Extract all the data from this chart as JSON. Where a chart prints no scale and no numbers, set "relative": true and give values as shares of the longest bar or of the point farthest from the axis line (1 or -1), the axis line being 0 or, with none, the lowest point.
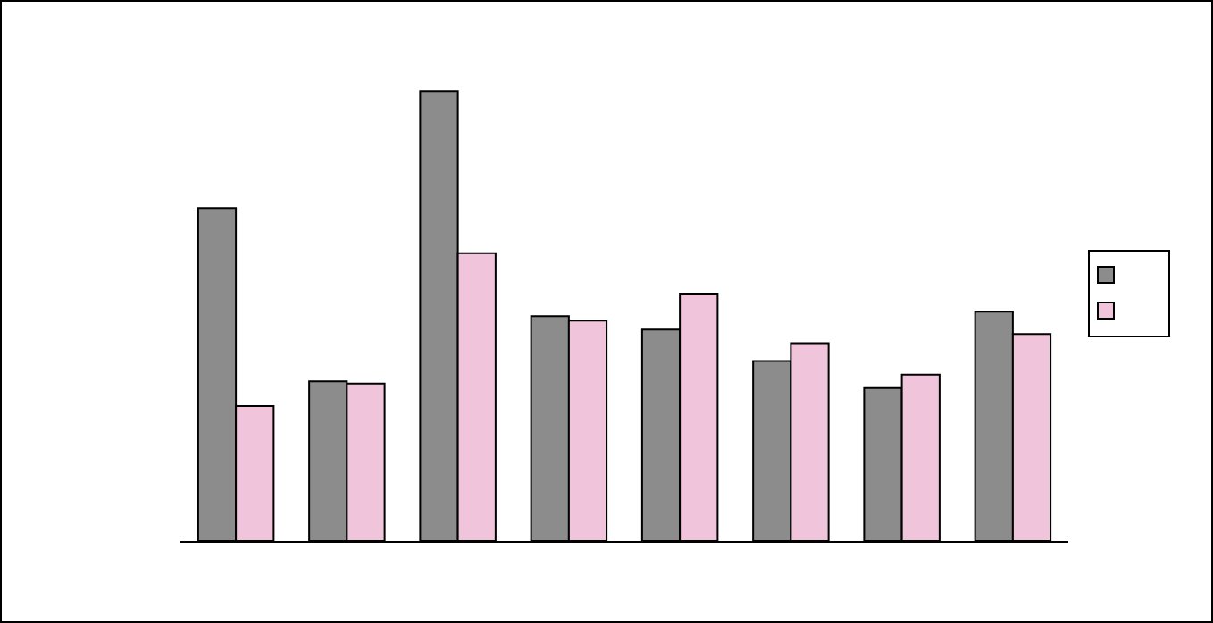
{
  "chart_data": {
    "type": "bar",
    "relative": true,
    "categories": [
      null,
      null,
      null,
      null,
      null,
      null,
      null,
      null
    ],
    "series": [
      {
        "color": "#8c8c8c",
        "values": [
          0.74,
          0.355,
          1,
          0.5,
          0.47,
          0.4,
          0.34,
          0.51
        ]
      },
      {
        "color": "#f0c4da",
        "values": [
          0.3,
          0.35,
          0.64,
          0.49,
          0.55,
          0.44,
          0.37,
          0.46
        ]
      }
    ]
  }
}
